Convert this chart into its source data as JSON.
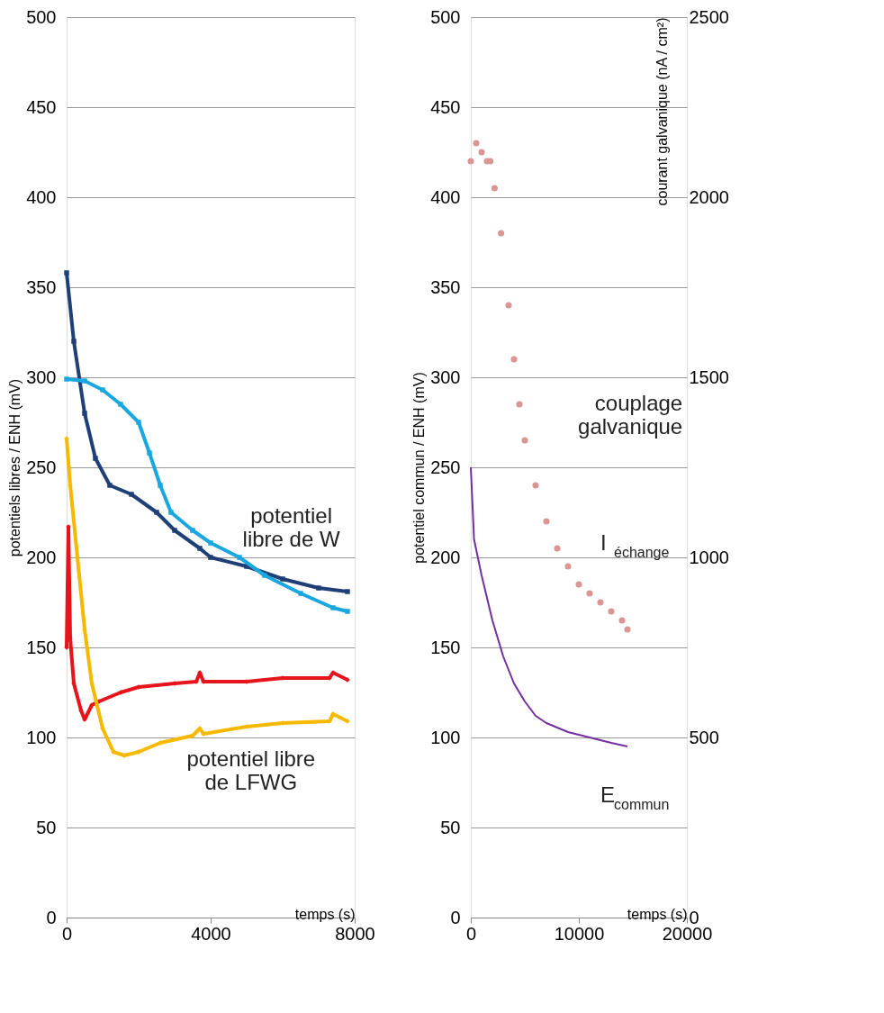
{
  "chart_data": [
    {
      "type": "line",
      "ylabel": "potentiels libres / ENH (mV)",
      "xlabel": "temps (s)",
      "xlim": [
        0,
        8000
      ],
      "xticks": [
        0,
        4000,
        8000
      ],
      "ylim": [
        0,
        500
      ],
      "yticks": [
        0,
        50,
        100,
        150,
        200,
        250,
        300,
        350,
        400,
        450,
        500
      ],
      "grid": "y",
      "line_style": "solid",
      "series": [
        {
          "color": "#1f3f77",
          "marker": "square",
          "x": [
            0,
            200,
            500,
            800,
            1200,
            1800,
            2500,
            3000,
            3700,
            4000,
            5000,
            6000,
            7000,
            7800
          ],
          "values": [
            358,
            320,
            280,
            255,
            240,
            235,
            225,
            215,
            205,
            200,
            195,
            188,
            183,
            181
          ]
        },
        {
          "color": "#1aa7e0",
          "marker": "square",
          "x": [
            0,
            500,
            1000,
            1500,
            2000,
            2300,
            2600,
            2900,
            3500,
            4000,
            4800,
            5500,
            6500,
            7400,
            7800
          ],
          "values": [
            299,
            298,
            293,
            285,
            275,
            258,
            240,
            225,
            215,
            208,
            200,
            190,
            180,
            172,
            170
          ]
        },
        {
          "color": "#e8141c",
          "marker": "diamond",
          "x": [
            0,
            50,
            100,
            200,
            400,
            500,
            700,
            900,
            1500,
            2000,
            3000,
            3600,
            3700,
            3800,
            5000,
            6000,
            7300,
            7400,
            7800
          ],
          "values": [
            150,
            217,
            155,
            130,
            115,
            110,
            118,
            120,
            125,
            128,
            130,
            131,
            136,
            131,
            131,
            133,
            133,
            136,
            132
          ]
        },
        {
          "color": "#f7b900",
          "marker": "diamond",
          "x": [
            0,
            100,
            300,
            500,
            700,
            1000,
            1300,
            1600,
            2000,
            2600,
            3500,
            3700,
            3800,
            5000,
            6000,
            7300,
            7400,
            7800
          ],
          "values": [
            266,
            240,
            200,
            160,
            130,
            105,
            92,
            90,
            92,
            97,
            101,
            105,
            102,
            106,
            108,
            109,
            113,
            109
          ]
        }
      ],
      "annotations": [
        "potentiel\nlibre de W",
        "potentiel libre\nde LFWG"
      ]
    },
    {
      "type": "line",
      "ylabel": "potentiel commun / ENH (mV)",
      "y2label": "courant galvanique (nA / cm²)",
      "xlabel": "temps (s)",
      "xlim": [
        0,
        20000
      ],
      "xticks": [
        0,
        10000,
        20000
      ],
      "ylim": [
        0,
        500
      ],
      "yticks": [
        0,
        50,
        100,
        150,
        200,
        250,
        300,
        350,
        400,
        450,
        500
      ],
      "y2lim": [
        0,
        2500
      ],
      "y2ticks": [
        0,
        500,
        1000,
        1500,
        2000,
        2500
      ],
      "grid": "y",
      "series": [
        {
          "type": "scatter",
          "axis": "y2",
          "color": "#d99694",
          "marker": "circle",
          "x": [
            0,
            500,
            1000,
            1500,
            1800,
            2200,
            2800,
            3500,
            4000,
            4500,
            5000,
            6000,
            7000,
            8000,
            9000,
            10000,
            11000,
            12000,
            13000,
            14000,
            14500
          ],
          "values": [
            2100,
            2150,
            2125,
            2100,
            2100,
            2025,
            1900,
            1700,
            1550,
            1425,
            1325,
            1200,
            1100,
            1025,
            975,
            925,
            900,
            875,
            850,
            825,
            800
          ]
        },
        {
          "color": "#7030a0",
          "marker": "none",
          "x": [
            0,
            300,
            1000,
            2000,
            3000,
            4000,
            5000,
            6000,
            7000,
            9000,
            11000,
            13000,
            14500
          ],
          "values": [
            250,
            210,
            190,
            165,
            145,
            130,
            120,
            112,
            108,
            103,
            100,
            97,
            95
          ]
        }
      ],
      "annotations": [
        "couplage\ngalvanique",
        "I$_{échange}$",
        "E$_{commun}$"
      ]
    }
  ]
}
